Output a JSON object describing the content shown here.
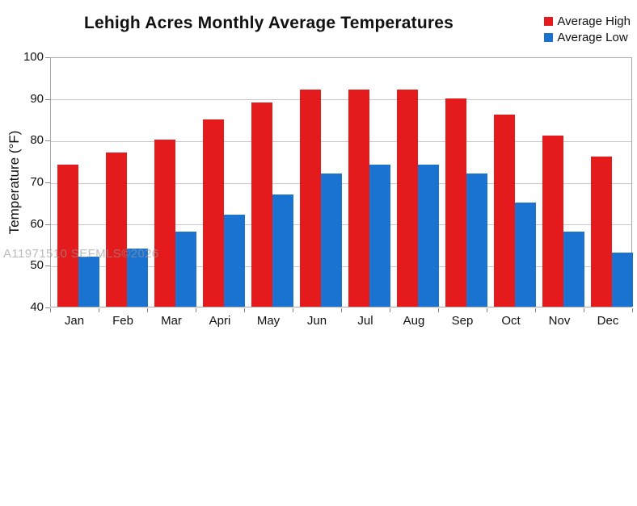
{
  "watermark": {
    "text": "A11971510 SEFMLS©2026"
  },
  "chart_data": {
    "type": "bar",
    "title": "Lehigh Acres Monthly Average Temperatures",
    "xlabel": "",
    "ylabel": "Temperature (°F)",
    "categories": [
      "Jan",
      "Feb",
      "Mar",
      "Apri",
      "May",
      "Jun",
      "Jul",
      "Aug",
      "Sep",
      "Oct",
      "Nov",
      "Dec"
    ],
    "series": [
      {
        "name": "Average High",
        "color": "#e41a1c",
        "values": [
          74,
          77,
          80,
          85,
          89,
          92,
          92,
          92,
          90,
          86,
          81,
          76
        ]
      },
      {
        "name": "Average Low",
        "color": "#1b73d1",
        "values": [
          52,
          54,
          58,
          62,
          67,
          72,
          74,
          74,
          72,
          65,
          58,
          53
        ]
      }
    ],
    "ylim": [
      40,
      100
    ],
    "yticks": [
      100,
      90,
      80,
      70,
      60,
      50,
      40
    ],
    "grid": true,
    "legend_position": "top-right",
    "grid_color": "#c9c9c9",
    "axis_color": "#a8a8a8"
  }
}
